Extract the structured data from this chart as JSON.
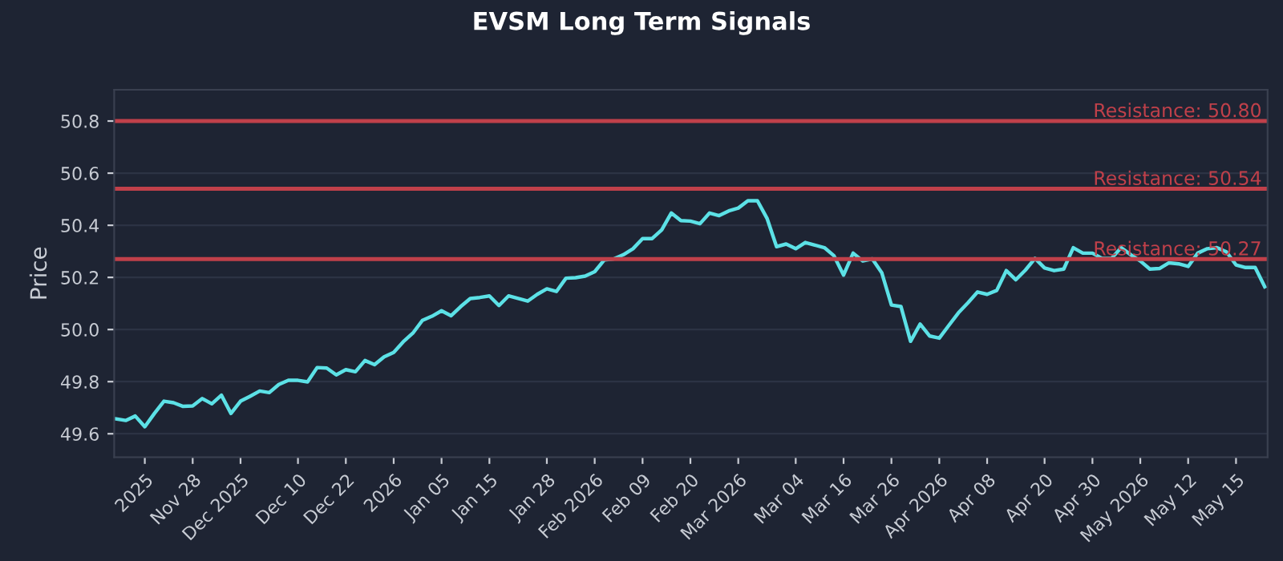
{
  "chart_data": {
    "type": "line",
    "title": "EVSM Long Term Signals",
    "ylabel": "Price",
    "series": [
      {
        "color": "#5ce1e6",
        "values": [
          49.657,
          49.651,
          49.668,
          49.627,
          49.678,
          49.725,
          49.719,
          49.705,
          49.707,
          49.735,
          49.715,
          49.748,
          49.678,
          49.725,
          49.744,
          49.764,
          49.758,
          49.789,
          49.805,
          49.805,
          49.799,
          49.854,
          49.852,
          49.826,
          49.846,
          49.838,
          49.881,
          49.865,
          49.895,
          49.912,
          49.953,
          49.986,
          50.035,
          50.051,
          50.072,
          50.053,
          50.088,
          50.119,
          50.123,
          50.129,
          50.092,
          50.129,
          50.119,
          50.109,
          50.135,
          50.156,
          50.146,
          50.197,
          50.199,
          50.205,
          50.222,
          50.267,
          50.271,
          50.287,
          50.31,
          50.349,
          50.349,
          50.382,
          50.447,
          50.418,
          50.416,
          50.406,
          50.447,
          50.437,
          50.455,
          50.466,
          50.494,
          50.494,
          50.427,
          50.318,
          50.328,
          50.31,
          50.334,
          50.324,
          50.314,
          50.283,
          50.209,
          50.293,
          50.263,
          50.271,
          50.217,
          50.094,
          50.088,
          49.955,
          50.021,
          49.975,
          49.967,
          50.016,
          50.064,
          50.103,
          50.144,
          50.135,
          50.15,
          50.226,
          50.191,
          50.228,
          50.273,
          50.236,
          50.226,
          50.232,
          50.314,
          50.293,
          50.293,
          50.273,
          50.273,
          50.314,
          50.287,
          50.263,
          50.232,
          50.234,
          50.256,
          50.252,
          50.242,
          50.293,
          50.31,
          50.314,
          50.298,
          50.248,
          50.238,
          50.238,
          50.164
        ]
      }
    ],
    "categories": [
      null,
      null,
      null,
      "2025",
      null,
      null,
      null,
      null,
      "Nov 28",
      null,
      null,
      null,
      null,
      "Dec 2025",
      null,
      null,
      null,
      null,
      null,
      "Dec 10",
      null,
      null,
      null,
      null,
      "Dec 22",
      null,
      null,
      null,
      null,
      "2026",
      null,
      null,
      null,
      null,
      "Jan 05",
      null,
      null,
      null,
      null,
      "Jan 15",
      null,
      null,
      null,
      null,
      null,
      "Jan 28",
      null,
      null,
      null,
      null,
      "Feb 2026",
      null,
      null,
      null,
      null,
      "Feb 09",
      null,
      null,
      null,
      null,
      "Feb 20",
      null,
      null,
      null,
      null,
      "Mar 2026",
      null,
      null,
      null,
      null,
      null,
      "Mar 04",
      null,
      null,
      null,
      null,
      "Mar 16",
      null,
      null,
      null,
      null,
      "Mar 26",
      null,
      null,
      null,
      null,
      "Apr 2026",
      null,
      null,
      null,
      null,
      "Apr 08",
      null,
      null,
      null,
      null,
      null,
      "Apr 20",
      null,
      null,
      null,
      null,
      "Apr 30",
      null,
      null,
      null,
      null,
      "May 2026",
      null,
      null,
      null,
      null,
      "May 12",
      null,
      null,
      null,
      null,
      "May 15",
      null,
      null,
      null
    ],
    "ylim": [
      49.51,
      50.92
    ],
    "yticks": [
      {
        "value": 49.6,
        "label": "49.6"
      },
      {
        "value": 49.8,
        "label": "49.8"
      },
      {
        "value": 50.0,
        "label": "50.0"
      },
      {
        "value": 50.2,
        "label": "50.2"
      },
      {
        "value": 50.4,
        "label": "50.4"
      },
      {
        "value": 50.6,
        "label": "50.6"
      },
      {
        "value": 50.8,
        "label": "50.8"
      }
    ],
    "grid": "y",
    "ref_lines": [
      {
        "axis": "y",
        "value": 50.8,
        "label": "Resistance: 50.80",
        "color": "#c0404a"
      },
      {
        "axis": "y",
        "value": 50.54,
        "label": "Resistance: 50.54",
        "color": "#c0404a"
      },
      {
        "axis": "y",
        "value": 50.27,
        "label": "Resistance: 50.27",
        "color": "#c0404a"
      }
    ]
  }
}
